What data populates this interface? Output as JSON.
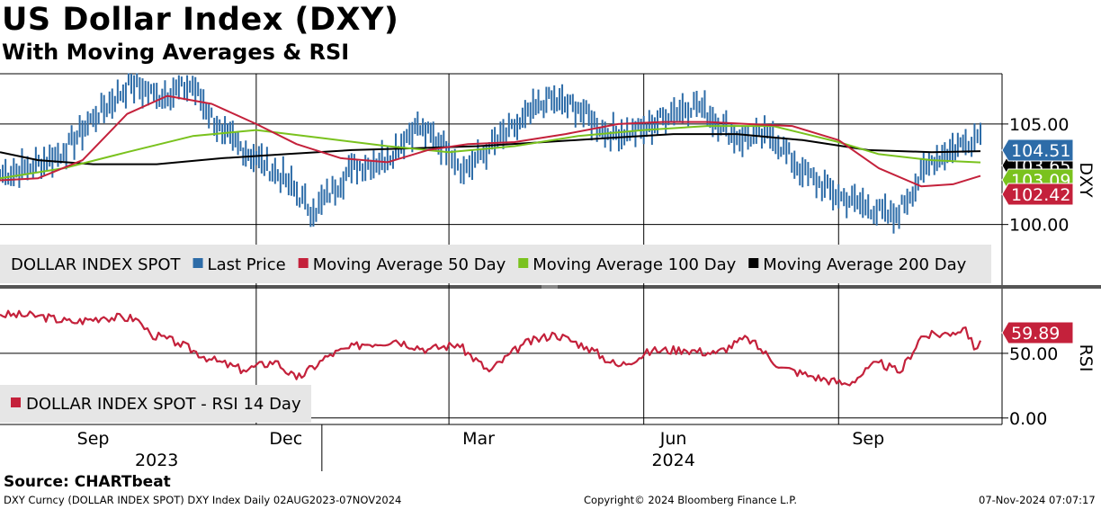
{
  "header": {
    "title": "US Dollar Index (DXY)",
    "subtitle": "With Moving Averages & RSI"
  },
  "footer": {
    "source": "Source: CHARTbeat",
    "ticker_info": "DXY Curncy (DOLLAR INDEX SPOT) DXY Index  Daily 02AUG2023-07NOV2024",
    "copyright": "Copyright© 2024 Bloomberg Finance L.P.",
    "timestamp": "07-Nov-2024 07:07:17"
  },
  "colors": {
    "price": "#2d6ca8",
    "ma50": "#c4213b",
    "ma100": "#7ac21e",
    "ma200": "#000000",
    "rsi": "#c4213b"
  },
  "chart_data": [
    {
      "type": "line",
      "panel": "price",
      "axis_label": "DXY",
      "ylim": [
        99,
        107.5
      ],
      "yticks": [
        100,
        105
      ],
      "ytick_labels": [
        "100.00",
        "105.00"
      ],
      "x_months": [
        "Sep",
        "Dec",
        "Mar",
        "Jun",
        "Sep"
      ],
      "x_years": [
        "2023",
        "2024"
      ],
      "legend": [
        {
          "label": "DOLLAR INDEX SPOT",
          "color": ""
        },
        {
          "label": "Last Price",
          "color": "#2d6ca8"
        },
        {
          "label": "Moving Average 50 Day",
          "color": "#c4213b"
        },
        {
          "label": "Moving Average 100 Day",
          "color": "#7ac21e"
        },
        {
          "label": "Moving Average 200 Day",
          "color": "#000000"
        }
      ],
      "last_values": [
        {
          "name": "Last Price",
          "value": "104.51",
          "color": "#2d6ca8"
        },
        {
          "name": "Moving Average 200 Day",
          "value": "103.65",
          "color": "#000000"
        },
        {
          "name": "Moving Average 100 Day",
          "value": "103.09",
          "color": "#7ac21e"
        },
        {
          "name": "Moving Average 50 Day",
          "value": "102.42",
          "color": "#c4213b"
        }
      ],
      "series": [
        {
          "name": "Last Price",
          "x": [
            "2023-08-02",
            "2023-08-15",
            "2023-09-01",
            "2023-09-15",
            "2023-10-03",
            "2023-10-15",
            "2023-11-01",
            "2023-11-15",
            "2023-12-01",
            "2023-12-15",
            "2023-12-28",
            "2024-01-15",
            "2024-02-01",
            "2024-02-14",
            "2024-03-01",
            "2024-03-08",
            "2024-03-20",
            "2024-04-01",
            "2024-04-16",
            "2024-05-01",
            "2024-05-15",
            "2024-06-01",
            "2024-06-14",
            "2024-06-26",
            "2024-07-15",
            "2024-08-01",
            "2024-08-15",
            "2024-09-01",
            "2024-09-15",
            "2024-09-27",
            "2024-10-15",
            "2024-10-31",
            "2024-11-07"
          ],
          "values": [
            102.5,
            102.8,
            103.6,
            105.3,
            107.0,
            106.4,
            106.9,
            104.5,
            103.3,
            102.2,
            100.6,
            102.8,
            103.3,
            104.9,
            103.8,
            102.7,
            103.8,
            104.8,
            106.2,
            105.8,
            104.5,
            104.7,
            105.6,
            106.0,
            104.3,
            104.4,
            102.6,
            101.4,
            100.9,
            100.3,
            103.2,
            104.1,
            104.51
          ]
        },
        {
          "name": "Moving Average 50 Day",
          "x": [
            "2023-08-02",
            "2023-08-20",
            "2023-09-10",
            "2023-10-01",
            "2023-10-20",
            "2023-11-10",
            "2023-12-01",
            "2023-12-20",
            "2024-01-10",
            "2024-02-01",
            "2024-02-20",
            "2024-03-10",
            "2024-04-01",
            "2024-04-25",
            "2024-05-20",
            "2024-06-10",
            "2024-07-01",
            "2024-07-20",
            "2024-08-10",
            "2024-09-01",
            "2024-09-20",
            "2024-10-10",
            "2024-10-25",
            "2024-11-07"
          ],
          "values": [
            102.2,
            102.3,
            103.2,
            105.5,
            106.4,
            106.0,
            105.0,
            104.0,
            103.3,
            103.1,
            103.7,
            104.0,
            104.1,
            104.5,
            105.0,
            105.1,
            105.1,
            105.0,
            104.9,
            104.2,
            102.8,
            101.9,
            102.0,
            102.42
          ]
        },
        {
          "name": "Moving Average 100 Day",
          "x": [
            "2023-08-02",
            "2023-09-01",
            "2023-10-01",
            "2023-11-01",
            "2023-12-01",
            "2024-01-01",
            "2024-02-01",
            "2024-03-01",
            "2024-04-01",
            "2024-05-01",
            "2024-06-01",
            "2024-07-01",
            "2024-08-01",
            "2024-09-01",
            "2024-09-20",
            "2024-10-15",
            "2024-11-07"
          ],
          "values": [
            102.3,
            102.8,
            103.6,
            104.4,
            104.7,
            104.3,
            103.9,
            103.6,
            103.9,
            104.4,
            104.7,
            104.9,
            104.9,
            104.1,
            103.5,
            103.2,
            103.09
          ]
        },
        {
          "name": "Moving Average 200 Day",
          "x": [
            "2023-08-02",
            "2023-08-20",
            "2023-09-15",
            "2023-10-15",
            "2023-11-15",
            "2023-12-15",
            "2024-01-15",
            "2024-02-15",
            "2024-03-15",
            "2024-04-15",
            "2024-05-15",
            "2024-06-15",
            "2024-07-15",
            "2024-08-15",
            "2024-09-15",
            "2024-10-15",
            "2024-11-07"
          ],
          "values": [
            103.6,
            103.2,
            103.0,
            103.0,
            103.3,
            103.5,
            103.7,
            103.8,
            103.9,
            104.1,
            104.3,
            104.5,
            104.5,
            104.2,
            103.7,
            103.6,
            103.65
          ]
        }
      ]
    },
    {
      "type": "line",
      "panel": "rsi",
      "axis_label": "RSI",
      "ylim": [
        -5,
        100
      ],
      "yticks": [
        0,
        50
      ],
      "ytick_labels": [
        "0.00",
        "50.00"
      ],
      "legend": [
        {
          "label": "DOLLAR INDEX SPOT - RSI 14 Day",
          "color": "#c4213b"
        }
      ],
      "last_values": [
        {
          "name": "RSI 14 Day",
          "value": "59.89",
          "color": "#c4213b"
        }
      ],
      "series": [
        {
          "name": "RSI 14 Day",
          "x": [
            "2023-08-02",
            "2023-08-20",
            "2023-09-05",
            "2023-09-20",
            "2023-10-05",
            "2023-10-12",
            "2023-10-25",
            "2023-11-10",
            "2023-11-25",
            "2023-12-10",
            "2023-12-20",
            "2024-01-05",
            "2024-01-20",
            "2024-02-05",
            "2024-02-20",
            "2024-03-05",
            "2024-03-20",
            "2024-04-05",
            "2024-04-20",
            "2024-05-05",
            "2024-05-20",
            "2024-06-05",
            "2024-06-20",
            "2024-07-05",
            "2024-07-20",
            "2024-08-05",
            "2024-08-20",
            "2024-09-05",
            "2024-09-20",
            "2024-09-30",
            "2024-10-10",
            "2024-10-25",
            "2024-10-31",
            "2024-11-04",
            "2024-11-07"
          ],
          "values": [
            80,
            79,
            74,
            78,
            77,
            65,
            58,
            45,
            37,
            44,
            30,
            49,
            57,
            60,
            53,
            57,
            36,
            57,
            65,
            55,
            40,
            52,
            53,
            50,
            62,
            39,
            32,
            26,
            43,
            35,
            63,
            66,
            70,
            53,
            59.89
          ]
        }
      ]
    }
  ]
}
